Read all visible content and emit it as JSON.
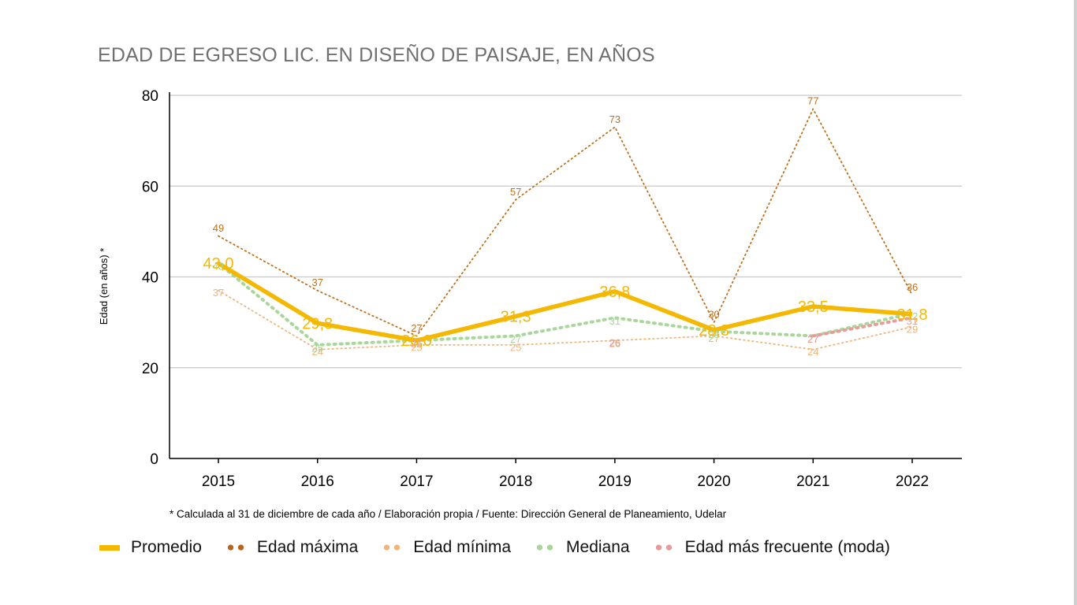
{
  "chart_data": {
    "type": "line",
    "title": "EDAD DE EGRESO LIC. EN DISEÑO DE PAISAJE, EN AÑOS",
    "xlabel": "",
    "ylabel": "Edad (en años) *",
    "categories": [
      "2015",
      "2016",
      "2017",
      "2018",
      "2019",
      "2020",
      "2021",
      "2022"
    ],
    "ylim": [
      0,
      80
    ],
    "yticks": [
      "0",
      "20",
      "40",
      "60",
      "80"
    ],
    "grid": true,
    "legend_position": "bottom",
    "footnote": "* Calculada al 31 de diciembre de cada año / Elaboración propia / Fuente: Dirección General de Planeamiento, Udelar",
    "series": [
      {
        "name": "Promedio",
        "color": "#F5B800",
        "style": "solid-thick",
        "values": [
          43.0,
          29.8,
          26.0,
          31.3,
          36.8,
          28.3,
          33.5,
          31.8
        ],
        "labels": [
          "43,0",
          "29,8",
          "26,0",
          "31,3",
          "36,8",
          "28,3",
          "33,5",
          "31,8"
        ]
      },
      {
        "name": "Edad máxima",
        "color": "#C0701C",
        "style": "dotted",
        "values": [
          49,
          37,
          27,
          57,
          73,
          30,
          77,
          36
        ],
        "labels": [
          "49",
          "37",
          "27",
          "57",
          "73",
          "30",
          "77",
          "36"
        ]
      },
      {
        "name": "Edad mínima",
        "color": "#F2B478",
        "style": "dotted",
        "values": [
          37,
          24,
          25,
          25,
          26,
          27,
          24,
          29
        ],
        "labels": [
          "37",
          "24",
          "25",
          "25",
          "26",
          "27",
          "24",
          "29"
        ]
      },
      {
        "name": "Mediana",
        "color": "#A9D79B",
        "style": "dotted-thick",
        "values": [
          43,
          25,
          26,
          27,
          31,
          28,
          27,
          32
        ],
        "labels": [
          "43",
          "25",
          "26",
          "27",
          "31",
          "28",
          "27",
          "32"
        ]
      },
      {
        "name": "Edad más frecuente (moda)",
        "color": "#EA9A9A",
        "style": "dotted-thick",
        "values": [
          null,
          null,
          26,
          null,
          26,
          null,
          27,
          31
        ],
        "labels": [
          null,
          null,
          "26",
          null,
          "26",
          null,
          "27",
          "31"
        ]
      }
    ]
  },
  "legend": {
    "items": [
      {
        "label": "Promedio",
        "color": "#F5B800"
      },
      {
        "label": "Edad máxima",
        "color": "#B5651D"
      },
      {
        "label": "Edad mínima",
        "color": "#F2B478"
      },
      {
        "label": "Mediana",
        "color": "#A9D79B"
      },
      {
        "label": "Edad más frecuente (moda)",
        "color": "#EA9A9A"
      }
    ]
  }
}
